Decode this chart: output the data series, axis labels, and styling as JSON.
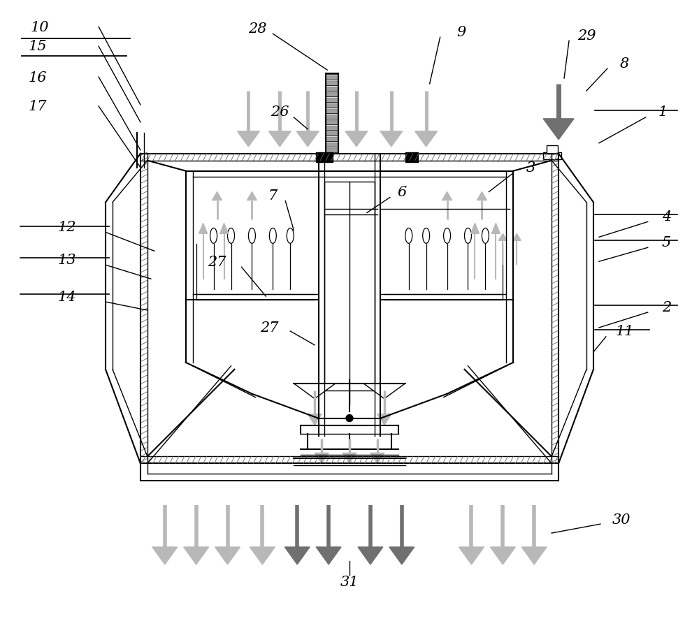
{
  "bg_color": "#ffffff",
  "lc": "#000000",
  "lg": "#b8b8b8",
  "dg": "#707070",
  "figsize": [
    10.0,
    9.2
  ],
  "dpi": 100
}
